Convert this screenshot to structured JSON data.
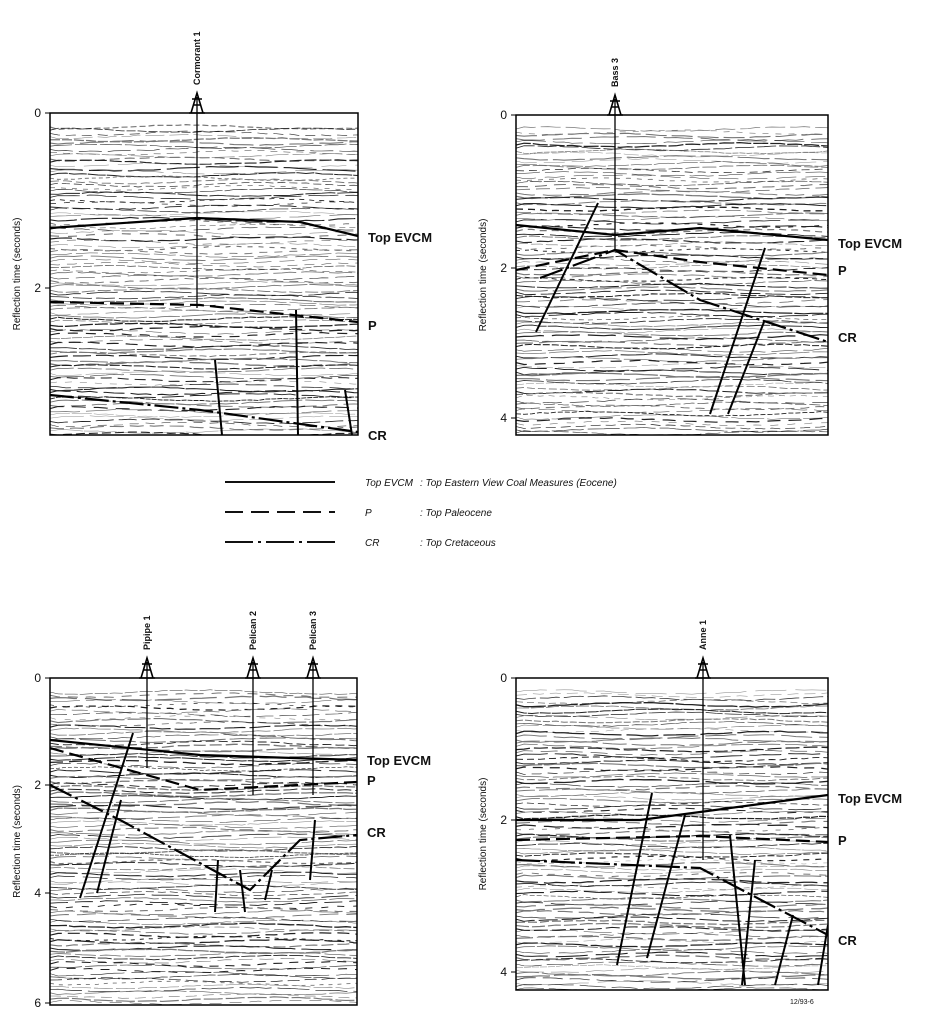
{
  "panels": [
    {
      "wells": [
        "Cormorant 1"
      ],
      "axis_label": "Reflection time (seconds)",
      "ticks": [
        "0",
        "2"
      ],
      "horizon_labels": [
        "Top EVCM",
        "P",
        "CR"
      ]
    },
    {
      "wells": [
        "Bass 3"
      ],
      "axis_label": "Reflection time (seconds)",
      "ticks": [
        "0",
        "2",
        "4"
      ],
      "horizon_labels": [
        "Top EVCM",
        "P",
        "CR"
      ]
    },
    {
      "wells": [
        "Pipipe 1",
        "Pelican 2",
        "Pelican 3"
      ],
      "axis_label": "Reflection time (seconds)",
      "ticks": [
        "0",
        "2",
        "4",
        "6"
      ],
      "horizon_labels": [
        "Top EVCM",
        "P",
        "CR"
      ]
    },
    {
      "wells": [
        "Anne 1"
      ],
      "axis_label": "Reflection time (seconds)",
      "ticks": [
        "0",
        "2",
        "4"
      ],
      "horizon_labels": [
        "Top EVCM",
        "P",
        "CR"
      ]
    }
  ],
  "legend": [
    {
      "abbr": "Top EVCM",
      "description": ": Top Eastern View Coal Measures (Eocene)"
    },
    {
      "abbr": "P",
      "description": ": Top Paleocene"
    },
    {
      "abbr": "CR",
      "description": ": Top Cretaceous"
    }
  ],
  "figure_code": "12/93-6"
}
